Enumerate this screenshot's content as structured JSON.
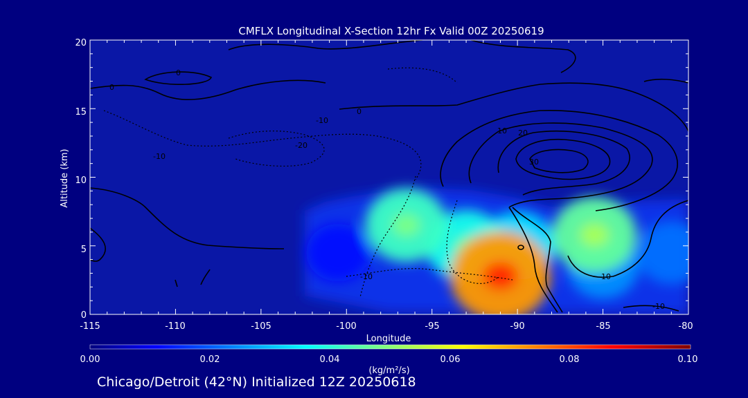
{
  "chart_data": {
    "type": "heatmap",
    "title": "CMFLX Longitudinal X-Section 12hr  Fx Valid 00Z 20250619",
    "xlabel": "Longitude",
    "ylabel": "Altitude (km)",
    "xlim": [
      -115,
      -80
    ],
    "ylim": [
      0,
      20
    ],
    "x_ticks": [
      "-115",
      "-110",
      "-105",
      "-100",
      "-95",
      "-90",
      "-85",
      "-80"
    ],
    "y_ticks": [
      "0",
      "5",
      "10",
      "15",
      "20"
    ],
    "colorbar": {
      "label": "(kg/m²/s)",
      "ticks": [
        "0.00",
        "0.02",
        "0.04",
        "0.06",
        "0.08",
        "0.10"
      ],
      "range": [
        0.0,
        0.1
      ],
      "colormap": "jet"
    },
    "blobs": [
      {
        "lon": -96.5,
        "alt": 6.5,
        "value": 0.042
      },
      {
        "lon": -93.0,
        "alt": 5.0,
        "value": 0.038
      },
      {
        "lon": -91.0,
        "alt": 2.8,
        "value": 0.072
      },
      {
        "lon": -90.0,
        "alt": 5.0,
        "value": 0.033
      },
      {
        "lon": -85.5,
        "alt": 5.8,
        "value": 0.046
      },
      {
        "lon": -85.0,
        "alt": 3.5,
        "value": 0.025
      },
      {
        "lon": -81.0,
        "alt": 4.5,
        "value": 0.022
      },
      {
        "lon": -100.5,
        "alt": 4.5,
        "value": 0.012
      }
    ],
    "contour_labels": [
      "0",
      "0",
      "-10",
      "-20",
      "-10",
      "10",
      "20",
      "30",
      "-10",
      "0",
      "10",
      "-10"
    ],
    "footer": "Chicago/Detroit (42°N) Initialized 12Z 20250618",
    "colors": {
      "background": "#000080",
      "text": "#ffffff",
      "plot_background": "#0a17a6",
      "contour": "#000000"
    }
  }
}
